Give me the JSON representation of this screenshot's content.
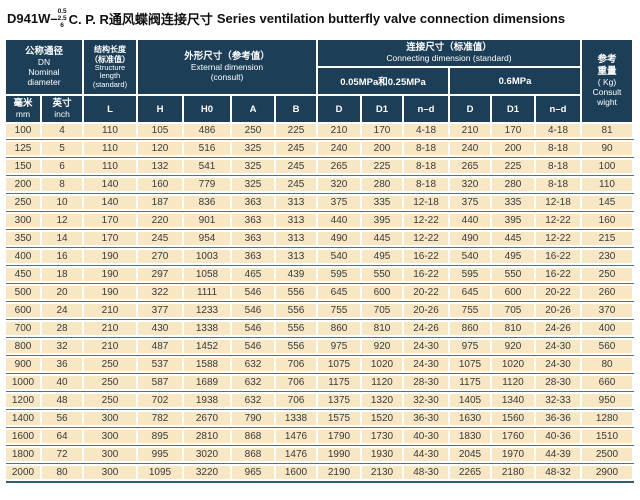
{
  "title": {
    "model_prefix": "D941W–",
    "pressure_stack": [
      "0.5",
      "2.5",
      "6"
    ],
    "model_suffix": "C. P. R通风蝶阀连接尺寸",
    "subtitle_en": "Series ventilation butterfly valve connection dimensions"
  },
  "table": {
    "header": {
      "dn_zh": "公称通径",
      "dn_en": "DN\nNominal\ndiameter",
      "mm_zh": "毫米",
      "mm_en": "mm",
      "inch_zh": "英寸",
      "inch_en": "inch",
      "structure_zh": "结构长度\n（标准值）",
      "structure_en": "Structure\nlength\n(standard)",
      "l": "L",
      "external_zh": "外形尺寸（参考值）",
      "external_en": "External dimension\n(consult)",
      "h": "H",
      "h0": "H0",
      "a": "A",
      "b": "B",
      "connecting_zh": "连接尺寸（标准值）",
      "connecting_en": "Connecting dimension (standard)",
      "mpa_low": "0.05MPa和0.25MPa",
      "mpa_high": "0.6MPa",
      "d": "D",
      "d1": "D1",
      "nd": "n–d",
      "weight_zh": "参考\n重量",
      "weight_unit": "( Kg)",
      "weight_en": "Consult\nwight"
    },
    "rows": [
      [
        "100",
        "4",
        "110",
        "105",
        "486",
        "250",
        "225",
        "210",
        "170",
        "4-18",
        "210",
        "170",
        "4-18",
        "81"
      ],
      [
        "125",
        "5",
        "110",
        "120",
        "516",
        "325",
        "245",
        "240",
        "200",
        "8-18",
        "240",
        "200",
        "8-18",
        "90"
      ],
      [
        "150",
        "6",
        "110",
        "132",
        "541",
        "325",
        "245",
        "265",
        "225",
        "8-18",
        "265",
        "225",
        "8-18",
        "100"
      ],
      [
        "200",
        "8",
        "140",
        "160",
        "779",
        "325",
        "245",
        "320",
        "280",
        "8-18",
        "320",
        "280",
        "8-18",
        "110"
      ],
      [
        "250",
        "10",
        "140",
        "187",
        "836",
        "363",
        "313",
        "375",
        "335",
        "12-18",
        "375",
        "335",
        "12-18",
        "145"
      ],
      [
        "300",
        "12",
        "170",
        "220",
        "901",
        "363",
        "313",
        "440",
        "395",
        "12-22",
        "440",
        "395",
        "12-22",
        "160"
      ],
      [
        "350",
        "14",
        "170",
        "245",
        "954",
        "363",
        "313",
        "490",
        "445",
        "12-22",
        "490",
        "445",
        "12-22",
        "215"
      ],
      [
        "400",
        "16",
        "190",
        "270",
        "1003",
        "363",
        "313",
        "540",
        "495",
        "16-22",
        "540",
        "495",
        "16-22",
        "230"
      ],
      [
        "450",
        "18",
        "190",
        "297",
        "1058",
        "465",
        "439",
        "595",
        "550",
        "16-22",
        "595",
        "550",
        "16-22",
        "250"
      ],
      [
        "500",
        "20",
        "190",
        "322",
        "1111",
        "546",
        "556",
        "645",
        "600",
        "20-22",
        "645",
        "600",
        "20-22",
        "260"
      ],
      [
        "600",
        "24",
        "210",
        "377",
        "1233",
        "546",
        "556",
        "755",
        "705",
        "20-26",
        "755",
        "705",
        "20-26",
        "370"
      ],
      [
        "700",
        "28",
        "210",
        "430",
        "1338",
        "546",
        "556",
        "860",
        "810",
        "24-26",
        "860",
        "810",
        "24-26",
        "400"
      ],
      [
        "800",
        "32",
        "210",
        "487",
        "1452",
        "546",
        "556",
        "975",
        "920",
        "24-30",
        "975",
        "920",
        "24-30",
        "560"
      ],
      [
        "900",
        "36",
        "250",
        "537",
        "1588",
        "632",
        "706",
        "1075",
        "1020",
        "24-30",
        "1075",
        "1020",
        "24-30",
        "80"
      ],
      [
        "1000",
        "40",
        "250",
        "587",
        "1689",
        "632",
        "706",
        "1175",
        "1120",
        "28-30",
        "1175",
        "1120",
        "28-30",
        "660"
      ],
      [
        "1200",
        "48",
        "250",
        "702",
        "1938",
        "632",
        "706",
        "1375",
        "1320",
        "32-30",
        "1405",
        "1340",
        "32-33",
        "950"
      ],
      [
        "1400",
        "56",
        "300",
        "782",
        "2670",
        "790",
        "1338",
        "1575",
        "1520",
        "36-30",
        "1630",
        "1560",
        "36-36",
        "1280"
      ],
      [
        "1600",
        "64",
        "300",
        "895",
        "2810",
        "868",
        "1476",
        "1790",
        "1730",
        "40-30",
        "1830",
        "1760",
        "40-36",
        "1510"
      ],
      [
        "1800",
        "72",
        "300",
        "995",
        "3020",
        "868",
        "1476",
        "1990",
        "1930",
        "44-30",
        "2045",
        "1970",
        "44-39",
        "2500"
      ],
      [
        "2000",
        "80",
        "300",
        "1095",
        "3220",
        "965",
        "1600",
        "2190",
        "2130",
        "48-30",
        "2265",
        "2180",
        "48-32",
        "2900"
      ]
    ]
  }
}
